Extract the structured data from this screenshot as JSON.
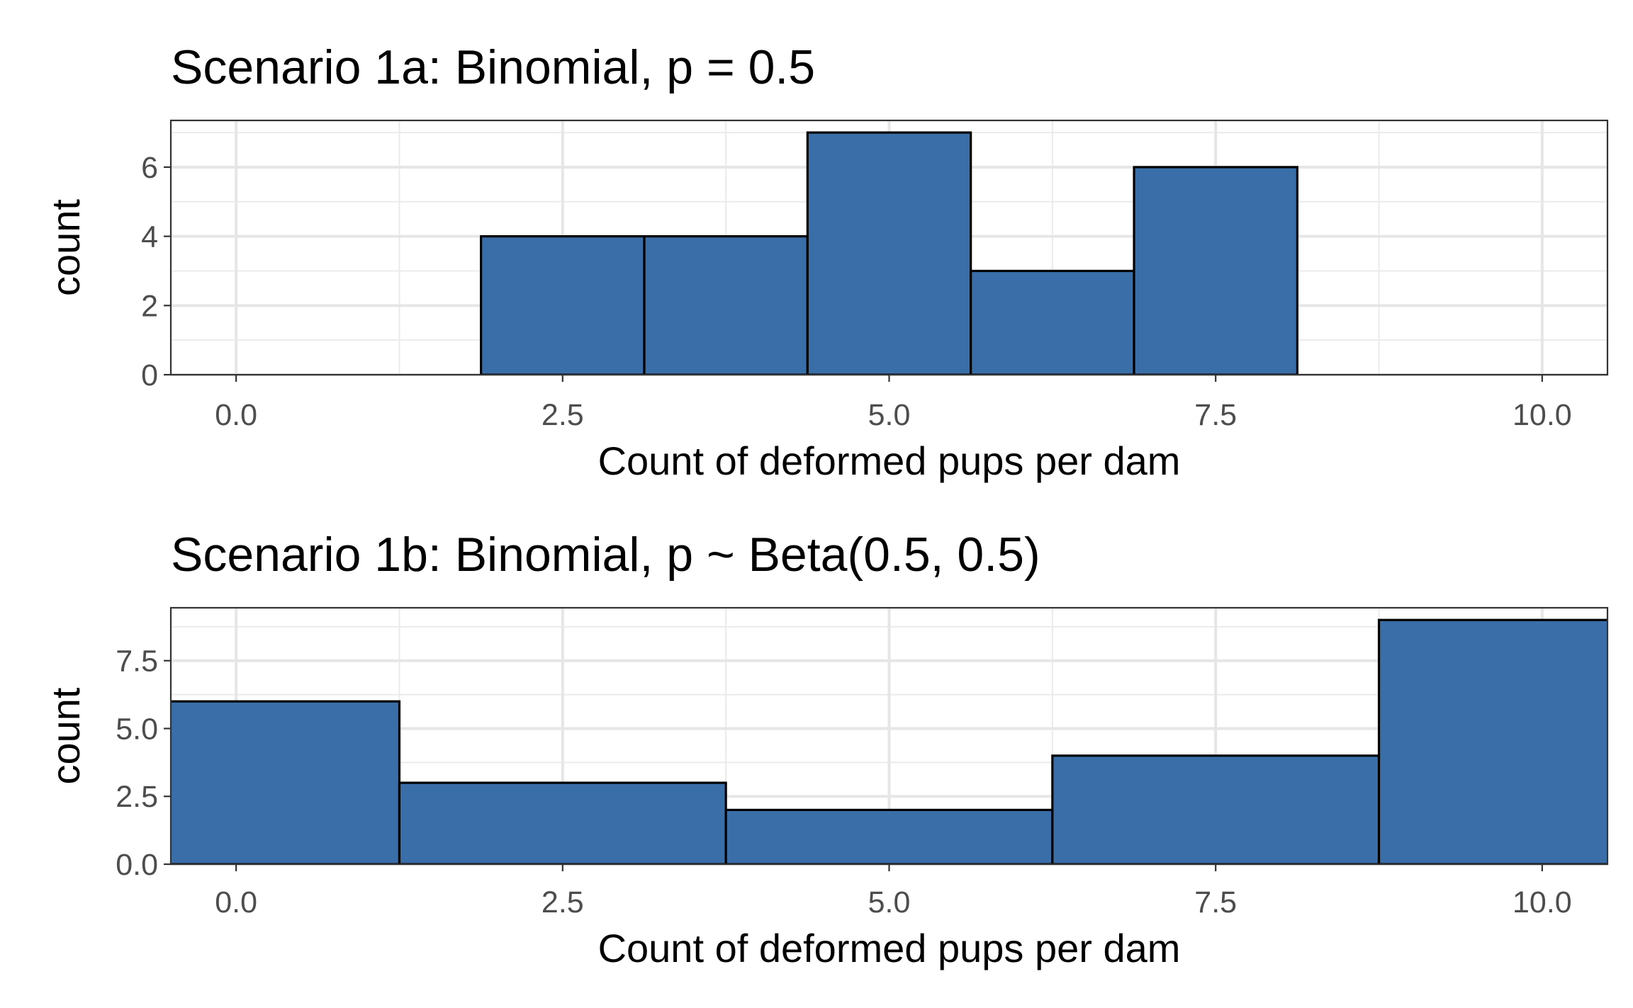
{
  "chart_data": [
    {
      "type": "bar",
      "title": "Scenario 1a: Binomial, p = 0.5",
      "xlabel": "Count of deformed pups per dam",
      "ylabel": "count",
      "xlim": [
        -0.5,
        10.5
      ],
      "ylim": [
        0,
        7.35
      ],
      "xticks": [
        0,
        2.5,
        5,
        7.5,
        10
      ],
      "xtick_labels": [
        "0.0",
        "2.5",
        "5.0",
        "7.5",
        "10.0"
      ],
      "yticks": [
        0,
        2,
        4,
        6
      ],
      "ytick_labels": [
        "0",
        "2",
        "4",
        "6"
      ],
      "grid": true,
      "bins": [
        {
          "x0": 1.875,
          "x1": 3.125,
          "count": 4
        },
        {
          "x0": 3.125,
          "x1": 4.375,
          "count": 4
        },
        {
          "x0": 4.375,
          "x1": 5.625,
          "count": 7
        },
        {
          "x0": 5.625,
          "x1": 6.875,
          "count": 3
        },
        {
          "x0": 6.875,
          "x1": 8.125,
          "count": 6
        }
      ],
      "colors": {
        "fill": "#3a6ea8",
        "outline": "#000000"
      }
    },
    {
      "type": "bar",
      "title": "Scenario 1b: Binomial, p ~ Beta(0.5, 0.5)",
      "xlabel": "Count of deformed pups per dam",
      "ylabel": "count",
      "xlim": [
        -0.5,
        10.5
      ],
      "ylim": [
        0,
        9.45
      ],
      "xticks": [
        0,
        2.5,
        5,
        7.5,
        10
      ],
      "xtick_labels": [
        "0.0",
        "2.5",
        "5.0",
        "7.5",
        "10.0"
      ],
      "yticks": [
        0,
        2.5,
        5,
        7.5
      ],
      "ytick_labels": [
        "0.0",
        "2.5",
        "5.0",
        "7.5"
      ],
      "grid": true,
      "bins": [
        {
          "x0": -1.25,
          "x1": 1.25,
          "count": 6
        },
        {
          "x0": 1.25,
          "x1": 3.75,
          "count": 3
        },
        {
          "x0": 3.75,
          "x1": 6.25,
          "count": 2
        },
        {
          "x0": 6.25,
          "x1": 8.75,
          "count": 4
        },
        {
          "x0": 8.75,
          "x1": 11.25,
          "count": 9
        }
      ],
      "colors": {
        "fill": "#3a6ea8",
        "outline": "#000000"
      }
    }
  ]
}
